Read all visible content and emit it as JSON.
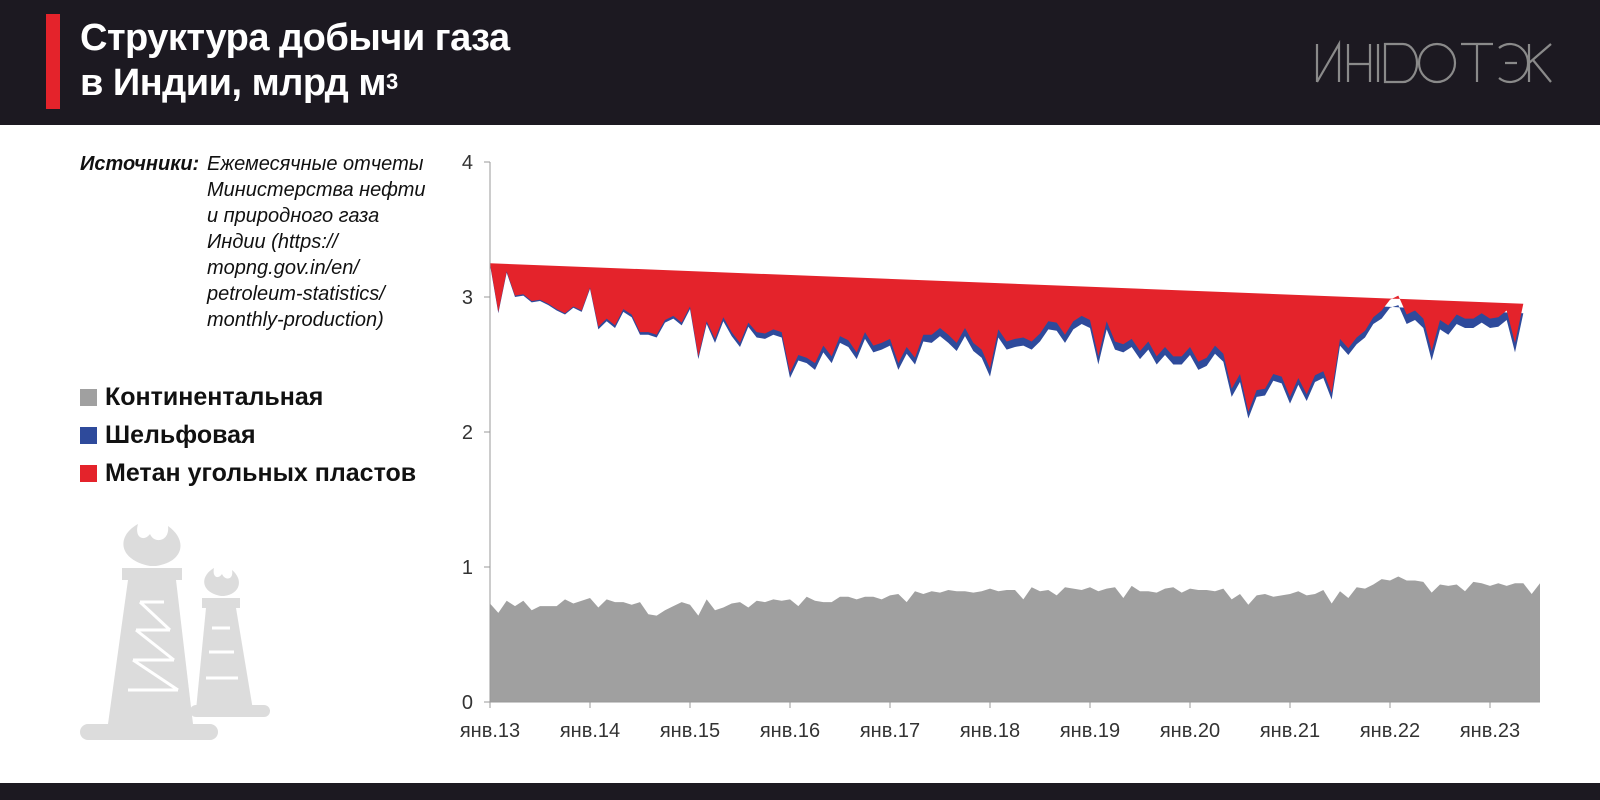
{
  "header": {
    "title_line1": "Структура добычи газа",
    "title_line2": "в Индии, млрд м",
    "title_sup": "3",
    "logo_text": "ИНФОТЭК"
  },
  "sources": {
    "label": "Источники:",
    "text": "Ежемесячные отчеты Министерства нефти и природного газа Индии (https:// mopng.gov.in/en/ petroleum-statistics/ monthly-production)"
  },
  "legend": [
    {
      "label": "Континентальная",
      "color": "#a0a0a0"
    },
    {
      "label": "Шельфовая",
      "color": "#2e4a9b"
    },
    {
      "label": "Метан угольных пластов",
      "color": "#e4232b"
    }
  ],
  "decor": {
    "icon": "gas-flare-tower-icon"
  },
  "chart_data": {
    "type": "area",
    "stacked": true,
    "x_start": "2013-01",
    "frequency": "monthly",
    "ylim": [
      0,
      4
    ],
    "yticks": [
      0,
      1,
      2,
      3,
      4
    ],
    "xtick_labels": [
      "янв.13",
      "янв.14",
      "янв.15",
      "янв.16",
      "янв.17",
      "янв.18",
      "янв.19",
      "янв.20",
      "янв.21",
      "янв.22",
      "янв.23"
    ],
    "grid": false,
    "series": [
      {
        "name": "Континентальная",
        "color": "#a0a0a0",
        "values": [
          0.73,
          0.66,
          0.75,
          0.71,
          0.75,
          0.68,
          0.71,
          0.71,
          0.71,
          0.76,
          0.73,
          0.75,
          0.77,
          0.7,
          0.76,
          0.74,
          0.74,
          0.72,
          0.74,
          0.65,
          0.64,
          0.68,
          0.71,
          0.74,
          0.72,
          0.64,
          0.76,
          0.68,
          0.7,
          0.73,
          0.74,
          0.7,
          0.75,
          0.74,
          0.76,
          0.75,
          0.76,
          0.71,
          0.78,
          0.75,
          0.74,
          0.74,
          0.78,
          0.78,
          0.76,
          0.78,
          0.78,
          0.76,
          0.79,
          0.8,
          0.74,
          0.82,
          0.8,
          0.82,
          0.81,
          0.83,
          0.82,
          0.82,
          0.81,
          0.82,
          0.84,
          0.82,
          0.83,
          0.83,
          0.76,
          0.85,
          0.82,
          0.83,
          0.79,
          0.85,
          0.84,
          0.83,
          0.85,
          0.82,
          0.84,
          0.85,
          0.77,
          0.86,
          0.82,
          0.82,
          0.81,
          0.84,
          0.85,
          0.81,
          0.84,
          0.83,
          0.83,
          0.82,
          0.84,
          0.76,
          0.8,
          0.72,
          0.79,
          0.8,
          0.78,
          0.79,
          0.8,
          0.82,
          0.79,
          0.8,
          0.83,
          0.73,
          0.82,
          0.77,
          0.85,
          0.84,
          0.87,
          0.91,
          0.9,
          0.93,
          0.9,
          0.9,
          0.89,
          0.81,
          0.87,
          0.86,
          0.87,
          0.82,
          0.89,
          0.88,
          0.86,
          0.88,
          0.86,
          0.88,
          0.88,
          0.8,
          0.88
        ]
      },
      {
        "name": "Шельфовая",
        "color": "#2e4a9b",
        "values": [
          2.51,
          2.22,
          2.43,
          2.29,
          2.26,
          2.28,
          2.26,
          2.23,
          2.19,
          2.11,
          2.19,
          2.14,
          2.29,
          2.06,
          2.06,
          2.03,
          2.15,
          2.13,
          1.98,
          2.07,
          2.06,
          2.13,
          2.13,
          2.05,
          2.19,
          1.9,
          2.04,
          1.98,
          2.12,
          1.98,
          1.89,
          2.08,
          1.95,
          1.95,
          1.96,
          1.95,
          1.64,
          1.82,
          1.73,
          1.71,
          1.85,
          1.77,
          1.88,
          1.85,
          1.78,
          1.91,
          1.81,
          1.85,
          1.85,
          1.66,
          1.84,
          1.68,
          1.87,
          1.84,
          1.9,
          1.83,
          1.78,
          1.89,
          1.79,
          1.73,
          1.57,
          1.88,
          1.78,
          1.8,
          1.88,
          1.76,
          1.85,
          1.93,
          1.96,
          1.81,
          1.92,
          1.97,
          1.92,
          1.68,
          1.92,
          1.76,
          1.82,
          1.77,
          1.72,
          1.79,
          1.69,
          1.73,
          1.65,
          1.69,
          1.73,
          1.63,
          1.66,
          1.76,
          1.68,
          1.5,
          1.57,
          1.38,
          1.47,
          1.47,
          1.6,
          1.57,
          1.41,
          1.53,
          1.44,
          1.57,
          1.57,
          1.51,
          1.82,
          1.8,
          1.8,
          1.86,
          1.93,
          1.93,
          2.02,
          2.01,
          1.9,
          1.93,
          1.88,
          1.72,
          1.89,
          1.86,
          1.93,
          1.95,
          1.88,
          1.93,
          1.91,
          1.9,
          1.97,
          1.71,
          2.0
        ]
      },
      {
        "name": "Метан угольных пластов",
        "color": "#e4232b",
        "values": [
          0.01,
          0.01,
          0.01,
          0.01,
          0.01,
          0.01,
          0.01,
          0.01,
          0.01,
          0.01,
          0.01,
          0.01,
          0.01,
          0.02,
          0.02,
          0.02,
          0.02,
          0.02,
          0.02,
          0.02,
          0.02,
          0.02,
          0.02,
          0.02,
          0.02,
          0.02,
          0.02,
          0.03,
          0.03,
          0.03,
          0.03,
          0.03,
          0.04,
          0.04,
          0.04,
          0.04,
          0.04,
          0.04,
          0.04,
          0.05,
          0.05,
          0.05,
          0.05,
          0.05,
          0.05,
          0.05,
          0.05,
          0.05,
          0.05,
          0.05,
          0.05,
          0.05,
          0.05,
          0.06,
          0.06,
          0.06,
          0.06,
          0.06,
          0.06,
          0.06,
          0.06,
          0.06,
          0.06,
          0.06,
          0.06,
          0.06,
          0.06,
          0.06,
          0.06,
          0.06,
          0.06,
          0.06,
          0.06,
          0.06,
          0.06,
          0.06,
          0.06,
          0.06,
          0.06,
          0.06,
          0.06,
          0.06,
          0.06,
          0.06,
          0.06,
          0.06,
          0.06,
          0.06,
          0.06,
          0.06,
          0.06,
          0.05,
          0.05,
          0.05,
          0.05,
          0.05,
          0.05,
          0.05,
          0.05,
          0.05,
          0.05,
          0.05,
          0.05,
          0.05,
          0.05,
          0.05,
          0.05,
          0.06,
          0.06,
          0.07,
          0.07,
          0.07,
          0.07,
          0.07,
          0.07,
          0.07,
          0.07,
          0.07,
          0.07,
          0.07,
          0.07,
          0.07,
          0.07,
          0.07,
          0.07
        ]
      }
    ]
  }
}
